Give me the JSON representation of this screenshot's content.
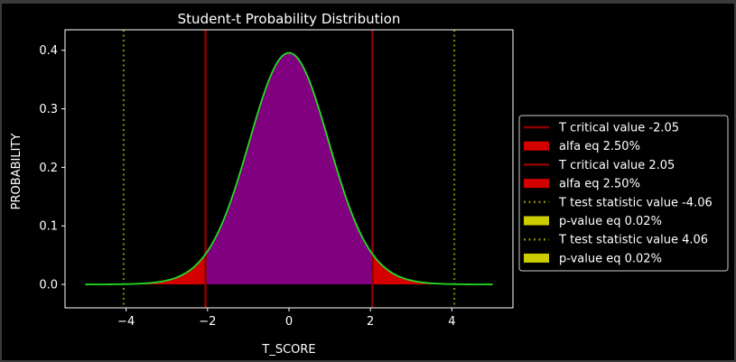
{
  "chart_data": {
    "type": "line",
    "title": "Student-t Probability Distribution",
    "xlabel": "T_SCORE",
    "ylabel": "PROBABILITY",
    "xlim": [
      -5.5,
      5.5
    ],
    "ylim": [
      -0.04,
      0.435
    ],
    "x_ticks": [
      -4,
      -2,
      0,
      2,
      4
    ],
    "x_tick_labels": [
      "−4",
      "−2",
      "0",
      "2",
      "4"
    ],
    "y_ticks": [
      0.0,
      0.1,
      0.2,
      0.3,
      0.4
    ],
    "y_tick_labels": [
      "0.0",
      "0.1",
      "0.2",
      "0.3",
      "0.4"
    ],
    "grid": false,
    "legend_position": "center-right",
    "distribution": {
      "name": "student-t",
      "degrees_of_freedom": 30,
      "x_range": [
        -5,
        5
      ]
    },
    "curve_color": "#22dd22",
    "center_fill_color": "#800080",
    "tail_fill_color": "#d40000",
    "pvalue_fill_color": "#cccc00",
    "critical_line_color": "#8b0000",
    "test_line_color": "#808000",
    "vertical_lines": [
      {
        "x": -2.05,
        "style": "solid",
        "color": "#8b0000"
      },
      {
        "x": 2.05,
        "style": "solid",
        "color": "#8b0000"
      },
      {
        "x": -4.06,
        "style": "dotted",
        "color": "#808000"
      },
      {
        "x": 4.06,
        "style": "dotted",
        "color": "#808000"
      }
    ],
    "legend": [
      {
        "label": "T critical value -2.05",
        "kind": "line-solid",
        "color": "#8b0000"
      },
      {
        "label": "alfa eq 2.50%",
        "kind": "patch",
        "color": "#d40000"
      },
      {
        "label": "T critical value 2.05",
        "kind": "line-solid",
        "color": "#8b0000"
      },
      {
        "label": "alfa eq 2.50%",
        "kind": "patch",
        "color": "#d40000"
      },
      {
        "label": "T test statistic value -4.06",
        "kind": "line-dotted",
        "color": "#808000"
      },
      {
        "label": "p-value eq 0.02%",
        "kind": "patch",
        "color": "#cccc00"
      },
      {
        "label": "T test statistic value 4.06",
        "kind": "line-dotted",
        "color": "#808000"
      },
      {
        "label": "p-value eq 0.02%",
        "kind": "patch",
        "color": "#cccc00"
      }
    ]
  }
}
